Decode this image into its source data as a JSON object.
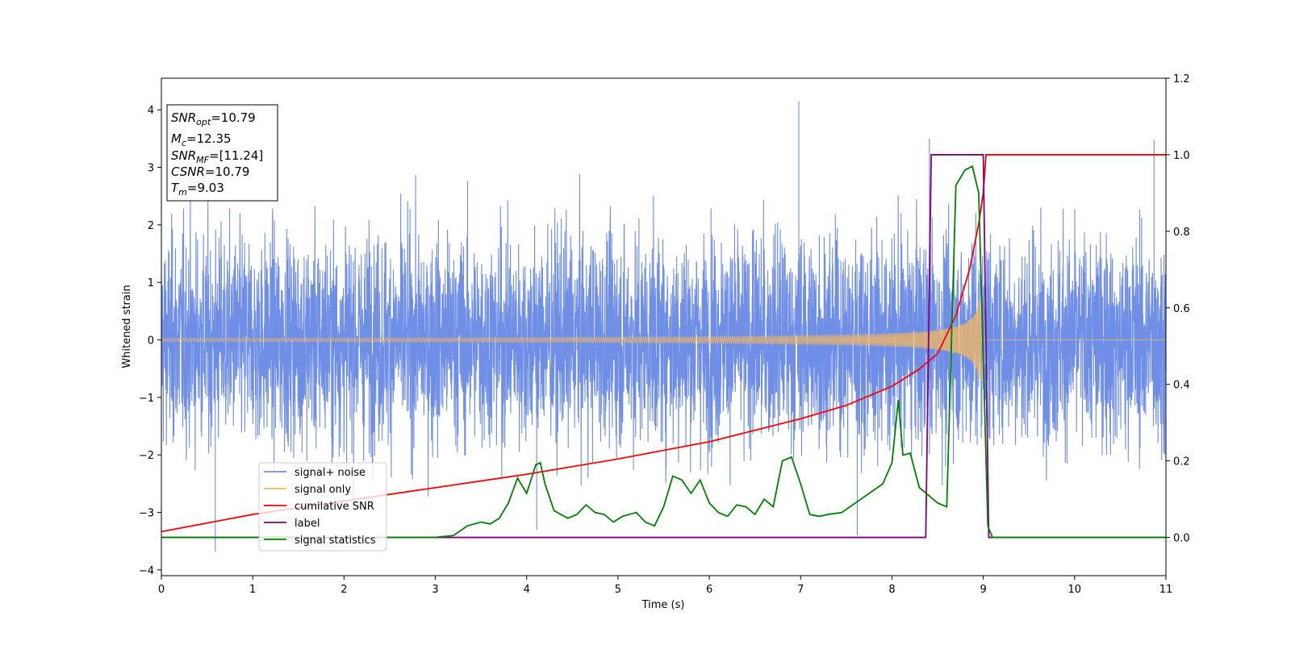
{
  "chart_data": {
    "type": "line",
    "xlabel": "Time (s)",
    "ylabel": "Whitened strain",
    "xlim": [
      0,
      11
    ],
    "ylim_left": [
      -4.1,
      4.55
    ],
    "ylim_right": [
      -0.1,
      1.2
    ],
    "xticks": [
      "0",
      "1",
      "2",
      "3",
      "4",
      "5",
      "6",
      "7",
      "8",
      "9",
      "10",
      "11"
    ],
    "yticks_left": [
      "−4",
      "−3",
      "−2",
      "−1",
      "0",
      "1",
      "2",
      "3",
      "4"
    ],
    "yticks_right": [
      "0.0",
      "0.2",
      "0.4",
      "0.6",
      "0.8",
      "1.0",
      "1.2"
    ],
    "grid": false,
    "legend_position": "lower-left",
    "legend": [
      {
        "label": "signal+ noise",
        "color": "#6f8ee6"
      },
      {
        "label": "signal only",
        "color": "#f6b85e"
      },
      {
        "label": "cumilative SNR",
        "color": "#ff0000"
      },
      {
        "label": "label",
        "color": "#800080"
      },
      {
        "label": "signal statistics",
        "color": "#008000"
      }
    ],
    "info_box": {
      "position": "top-left",
      "lines": [
        {
          "base": "SNR",
          "sub": "opt",
          "value": "=10.79"
        },
        {
          "base": "M",
          "sub": "c",
          "value": "=12.35"
        },
        {
          "base": "SNR",
          "sub": "MF",
          "value": "=[11.24]"
        },
        {
          "base": "CSNR",
          "sub": "",
          "value": "=10.79"
        },
        {
          "base": "T",
          "sub": "m",
          "value": "=9.03"
        }
      ]
    },
    "series": [
      {
        "name": "signal+ noise",
        "axis": "left",
        "color": "#6f8ee6",
        "description_style": "dense noise, amplitude about ±2 with spikes to about ±3.5",
        "noise_sigma": 1.0,
        "notable_peaks": [
          [
            6.98,
            4.15
          ],
          [
            8.41,
            3.5
          ],
          [
            10.87,
            3.48
          ],
          [
            0.59,
            -3.68
          ],
          [
            7.62,
            -3.4
          ],
          [
            4.11,
            -3.3
          ]
        ]
      },
      {
        "name": "signal only",
        "axis": "left",
        "color": "#f6b85e",
        "chirp_start_amplitude": 0.03,
        "chirp_end_time": 9.0,
        "chirp_peak_amplitude": 0.75
      },
      {
        "name": "cumilative SNR",
        "axis": "right",
        "color": "#ff0000",
        "x": [
          0,
          1,
          2,
          3,
          4,
          5,
          6,
          7,
          7.5,
          8,
          8.3,
          8.5,
          8.7,
          8.85,
          8.95,
          9.0,
          9.03,
          9.05,
          11
        ],
        "y": [
          0.015,
          0.06,
          0.095,
          0.13,
          0.165,
          0.205,
          0.25,
          0.31,
          0.345,
          0.395,
          0.44,
          0.48,
          0.58,
          0.7,
          0.82,
          0.9,
          1.0,
          1.0,
          1.0
        ]
      },
      {
        "name": "label",
        "axis": "right",
        "color": "#800080",
        "x": [
          0,
          8.37,
          8.43,
          9.0,
          9.06,
          11
        ],
        "y": [
          0.0,
          0.0,
          1.0,
          1.0,
          0.0,
          0.0
        ]
      },
      {
        "name": "signal statistics",
        "axis": "right",
        "color": "#008000",
        "x": [
          0,
          3.0,
          3.2,
          3.35,
          3.5,
          3.6,
          3.7,
          3.8,
          3.9,
          4.0,
          4.1,
          4.15,
          4.2,
          4.3,
          4.45,
          4.55,
          4.65,
          4.75,
          4.85,
          4.95,
          5.05,
          5.2,
          5.3,
          5.4,
          5.5,
          5.6,
          5.7,
          5.8,
          5.9,
          6.0,
          6.1,
          6.2,
          6.3,
          6.4,
          6.5,
          6.6,
          6.7,
          6.8,
          6.9,
          7.0,
          7.1,
          7.2,
          7.3,
          7.45,
          7.6,
          7.75,
          7.9,
          8.0,
          8.07,
          8.12,
          8.2,
          8.3,
          8.4,
          8.5,
          8.6,
          8.7,
          8.8,
          8.88,
          8.95,
          9.05,
          9.1,
          11
        ],
        "y": [
          0.0,
          0.0,
          0.005,
          0.03,
          0.04,
          0.035,
          0.05,
          0.09,
          0.155,
          0.115,
          0.19,
          0.195,
          0.14,
          0.07,
          0.05,
          0.06,
          0.085,
          0.065,
          0.06,
          0.04,
          0.055,
          0.065,
          0.04,
          0.03,
          0.08,
          0.16,
          0.15,
          0.115,
          0.15,
          0.09,
          0.065,
          0.055,
          0.085,
          0.08,
          0.06,
          0.1,
          0.08,
          0.2,
          0.21,
          0.14,
          0.06,
          0.055,
          0.06,
          0.065,
          0.09,
          0.115,
          0.14,
          0.195,
          0.36,
          0.215,
          0.22,
          0.13,
          0.11,
          0.09,
          0.08,
          0.92,
          0.96,
          0.97,
          0.9,
          0.03,
          0.0,
          0.0
        ]
      }
    ]
  }
}
